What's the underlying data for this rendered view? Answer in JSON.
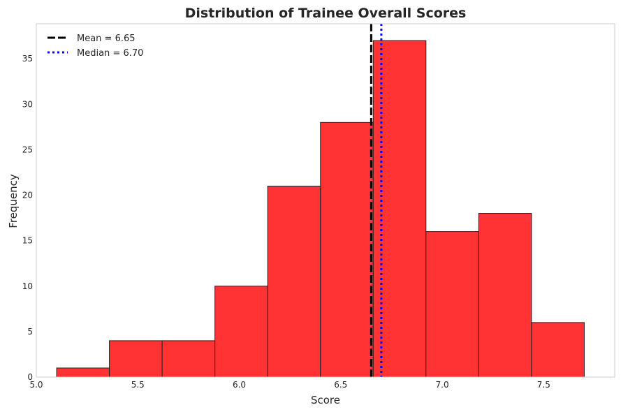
{
  "chart_data": {
    "type": "bar",
    "title": "Distribution of Trainee Overall Scores",
    "xlabel": "Score",
    "ylabel": "Frequency",
    "xlim": [
      5.0,
      7.85
    ],
    "ylim": [
      0,
      38.85
    ],
    "xticks": [
      "5.0",
      "5.5",
      "6.0",
      "6.5",
      "7.0",
      "7.5"
    ],
    "yticks": [
      "0",
      "5",
      "10",
      "15",
      "20",
      "25",
      "30",
      "35"
    ],
    "bins": [
      {
        "start": 5.1,
        "end": 5.36,
        "count": 1
      },
      {
        "start": 5.36,
        "end": 5.62,
        "count": 4
      },
      {
        "start": 5.62,
        "end": 5.88,
        "count": 4
      },
      {
        "start": 5.88,
        "end": 6.14,
        "count": 10
      },
      {
        "start": 6.14,
        "end": 6.4,
        "count": 21
      },
      {
        "start": 6.4,
        "end": 6.66,
        "count": 28
      },
      {
        "start": 6.66,
        "end": 6.92,
        "count": 37
      },
      {
        "start": 6.92,
        "end": 7.18,
        "count": 16
      },
      {
        "start": 7.18,
        "end": 7.44,
        "count": 18
      },
      {
        "start": 7.44,
        "end": 7.7,
        "count": 6
      }
    ],
    "reference_lines": [
      {
        "label": "Mean = 6.65",
        "value": 6.65,
        "style": "dashed",
        "color": "#000000"
      },
      {
        "label": "Median = 6.70",
        "value": 6.7,
        "style": "dotted",
        "color": "#0000ff"
      }
    ],
    "bar_color": "#ff3333",
    "edge_color": "#222222",
    "grid": false,
    "legend_position": "top-left"
  }
}
